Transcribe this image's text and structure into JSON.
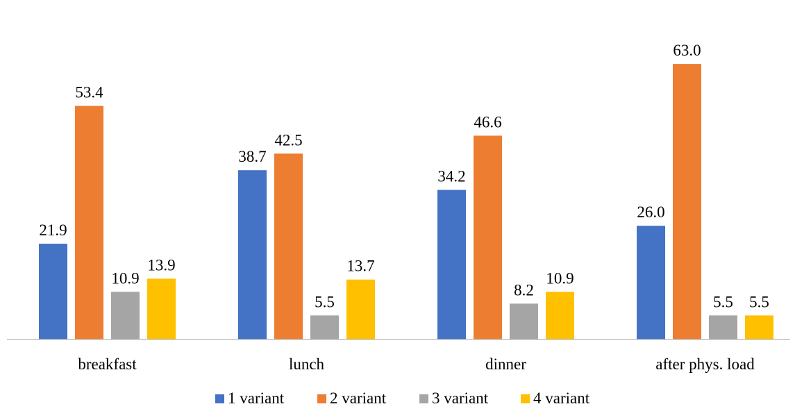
{
  "chart_data": {
    "type": "bar",
    "title": "",
    "xlabel": "",
    "ylabel": "",
    "categories": [
      "breakfast",
      "lunch",
      "dinner",
      "after phys. load"
    ],
    "series": [
      {
        "name": "1 variant",
        "color": "#4472C4",
        "values": [
          21.9,
          38.7,
          34.2,
          26.0
        ],
        "labels": [
          "21.9",
          "38.7",
          "34.2",
          "26.0"
        ]
      },
      {
        "name": "2 variant",
        "color": "#ED7D31",
        "values": [
          53.4,
          42.5,
          46.6,
          63.0
        ],
        "labels": [
          "53.4",
          "42.5",
          "46.6",
          "63.0"
        ]
      },
      {
        "name": "3 variant",
        "color": "#A5A5A5",
        "values": [
          10.9,
          5.5,
          8.2,
          5.5
        ],
        "labels": [
          "10.9",
          "5.5",
          "8.2",
          "5.5"
        ]
      },
      {
        "name": "4 variant",
        "color": "#FFC000",
        "values": [
          13.9,
          13.7,
          10.9,
          5.5
        ],
        "labels": [
          "13.9",
          "13.7",
          "10.9",
          "5.5"
        ]
      }
    ],
    "ylim": [
      0,
      70
    ],
    "grid": false,
    "legend": "bottom"
  }
}
